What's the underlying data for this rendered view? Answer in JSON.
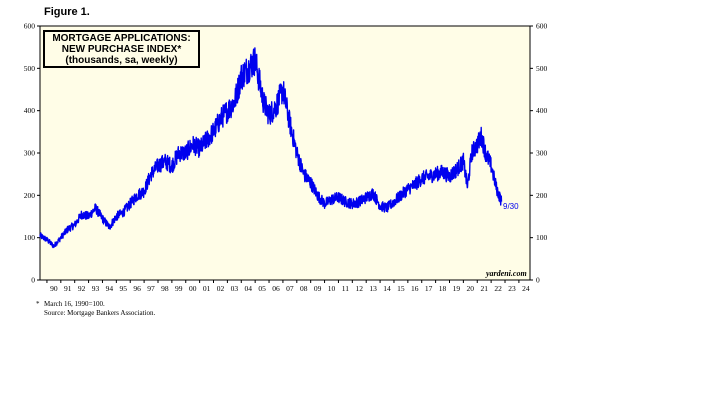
{
  "figure_label": "Figure 1.",
  "title_lines": [
    "MORTGAGE APPLICATIONS:",
    "NEW PURCHASE INDEX*",
    "(thousands, sa, weekly)"
  ],
  "watermark": "yardeni.com",
  "end_label": "9/30",
  "footnote": {
    "marker": "*",
    "line1": "March 16, 1990=100.",
    "line2": "Source:  Mortgage Bankers Association."
  },
  "colors": {
    "series": "#0000ee",
    "plot_bg": "#fffde7",
    "axis": "#000000"
  },
  "chart_data": {
    "type": "line",
    "title": "MORTGAGE APPLICATIONS: NEW PURCHASE INDEX* (thousands, sa, weekly)",
    "ylim": [
      0,
      600
    ],
    "xlim": [
      1989.5,
      2024.8
    ],
    "y_ticks": [
      0,
      100,
      200,
      300,
      400,
      500,
      600
    ],
    "x_tick_labels": [
      "90",
      "91",
      "92",
      "93",
      "94",
      "95",
      "96",
      "97",
      "98",
      "99",
      "00",
      "01",
      "02",
      "03",
      "04",
      "05",
      "06",
      "07",
      "08",
      "09",
      "10",
      "11",
      "12",
      "13",
      "14",
      "15",
      "16",
      "17",
      "18",
      "19",
      "20",
      "21",
      "22",
      "23",
      "24"
    ],
    "grid": false,
    "series": [
      {
        "x": [
          1989.5,
          1990.0,
          1990.5,
          1991.0,
          1991.5,
          1992.0,
          1992.5,
          1993.0,
          1993.5,
          1994.0,
          1994.5,
          1995.0,
          1995.5,
          1996.0,
          1996.5,
          1997.0,
          1997.5,
          1998.0,
          1998.5,
          1999.0,
          1999.5,
          2000.0,
          2000.5,
          2001.0,
          2001.5,
          2002.0,
          2002.5,
          2003.0,
          2003.5,
          2004.0,
          2004.5,
          2005.0,
          2005.3,
          2005.6,
          2006.0,
          2006.5,
          2007.0,
          2007.5,
          2008.0,
          2008.5,
          2009.0,
          2009.5,
          2010.0,
          2010.5,
          2011.0,
          2011.5,
          2012.0,
          2012.5,
          2013.0,
          2013.5,
          2014.0,
          2014.5,
          2015.0,
          2015.5,
          2016.0,
          2016.5,
          2017.0,
          2017.5,
          2018.0,
          2018.5,
          2019.0,
          2019.5,
          2020.0,
          2020.3,
          2020.6,
          2021.0,
          2021.3,
          2021.6,
          2022.0,
          2022.4,
          2022.75
        ],
        "values": [
          105,
          95,
          80,
          100,
          120,
          130,
          155,
          150,
          170,
          145,
          125,
          150,
          160,
          180,
          200,
          210,
          250,
          270,
          280,
          270,
          300,
          300,
          320,
          310,
          330,
          350,
          380,
          400,
          420,
          480,
          500,
          520,
          470,
          420,
          390,
          410,
          450,
          370,
          300,
          250,
          230,
          200,
          180,
          190,
          195,
          185,
          180,
          185,
          195,
          205,
          175,
          170,
          185,
          200,
          215,
          225,
          240,
          245,
          250,
          255,
          245,
          260,
          280,
          220,
          300,
          320,
          340,
          300,
          270,
          215,
          185
        ]
      }
    ]
  }
}
